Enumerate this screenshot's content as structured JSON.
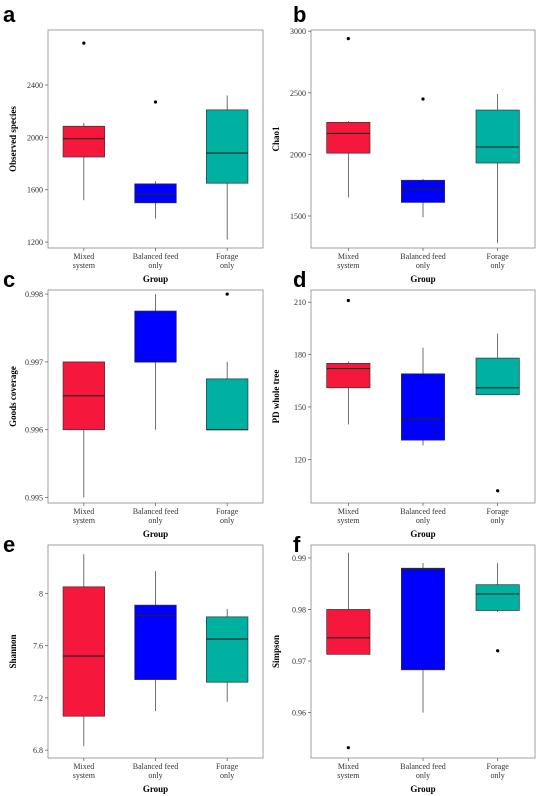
{
  "colors": {
    "Mixed system": "#f5183c",
    "Balanced feed only": "#0000ff",
    "Forage only": "#00b0a0"
  },
  "chart_data": [
    {
      "panel": "a",
      "type": "box",
      "xlabel": "Group",
      "ylabel": "Observed species",
      "categories": [
        "Mixed system",
        "Balanced feed only",
        "Forage only"
      ],
      "yticks": [
        1200,
        1600,
        2000,
        2400
      ],
      "ylim": [
        1155,
        2820
      ],
      "boxes": [
        {
          "whisker_low": 1520,
          "q1": 1850,
          "median": 1990,
          "q3": 2085,
          "whisker_high": 2110,
          "outliers": [
            2720
          ]
        },
        {
          "whisker_low": 1380,
          "q1": 1500,
          "median": 1565,
          "q3": 1645,
          "whisker_high": 1665,
          "outliers": [
            2270
          ]
        },
        {
          "whisker_low": 1220,
          "q1": 1650,
          "median": 1880,
          "q3": 2210,
          "whisker_high": 2320,
          "outliers": []
        }
      ]
    },
    {
      "panel": "b",
      "type": "box",
      "xlabel": "Group",
      "ylabel": "Chao1",
      "categories": [
        "Mixed system",
        "Balanced feed only",
        "Forage only"
      ],
      "yticks": [
        1500,
        2000,
        2500,
        3000
      ],
      "ylim": [
        1240,
        3010
      ],
      "boxes": [
        {
          "whisker_low": 1650,
          "q1": 2010,
          "median": 2170,
          "q3": 2260,
          "whisker_high": 2270,
          "outliers": [
            2940
          ]
        },
        {
          "whisker_low": 1490,
          "q1": 1610,
          "median": 1720,
          "q3": 1790,
          "whisker_high": 1800,
          "outliers": [
            2450
          ]
        },
        {
          "whisker_low": 1280,
          "q1": 1930,
          "median": 2060,
          "q3": 2360,
          "whisker_high": 2490,
          "outliers": []
        }
      ]
    },
    {
      "panel": "c",
      "type": "box",
      "xlabel": "Group",
      "ylabel": "Goods coverage",
      "categories": [
        "Mixed system",
        "Balanced feed only",
        "Forage only"
      ],
      "yticks": [
        0.995,
        0.996,
        0.997,
        0.998
      ],
      "ylim": [
        0.99492,
        0.99806
      ],
      "boxes": [
        {
          "whisker_low": 0.995,
          "q1": 0.996,
          "median": 0.9965,
          "q3": 0.997,
          "whisker_high": 0.997,
          "outliers": []
        },
        {
          "whisker_low": 0.996,
          "q1": 0.997,
          "median": 0.997,
          "q3": 0.99775,
          "whisker_high": 0.998,
          "outliers": []
        },
        {
          "whisker_low": 0.996,
          "q1": 0.996,
          "median": 0.996,
          "q3": 0.99675,
          "whisker_high": 0.997,
          "outliers": [
            0.998
          ]
        }
      ]
    },
    {
      "panel": "d",
      "type": "box",
      "xlabel": "Group",
      "ylabel": "PD whole tree",
      "categories": [
        "Mixed system",
        "Balanced feed only",
        "Forage only"
      ],
      "yticks": [
        120,
        150,
        180,
        210
      ],
      "ylim": [
        95,
        217
      ],
      "boxes": [
        {
          "whisker_low": 140,
          "q1": 161,
          "median": 172,
          "q3": 175,
          "whisker_high": 176,
          "outliers": [
            211
          ]
        },
        {
          "whisker_low": 128,
          "q1": 131,
          "median": 143,
          "q3": 169,
          "whisker_high": 184,
          "outliers": []
        },
        {
          "whisker_low": 157,
          "q1": 157,
          "median": 161,
          "q3": 178,
          "whisker_high": 192,
          "outliers": [
            102
          ]
        }
      ]
    },
    {
      "panel": "e",
      "type": "box",
      "xlabel": "Group",
      "ylabel": "Shannon",
      "categories": [
        "Mixed system",
        "Balanced feed only",
        "Forage only"
      ],
      "yticks": [
        6.8,
        7.2,
        7.6,
        8.0
      ],
      "ylim": [
        6.74,
        8.37
      ],
      "boxes": [
        {
          "whisker_low": 6.83,
          "q1": 7.06,
          "median": 7.52,
          "q3": 8.05,
          "whisker_high": 8.3,
          "outliers": []
        },
        {
          "whisker_low": 7.1,
          "q1": 7.34,
          "median": 7.83,
          "q3": 7.91,
          "whisker_high": 8.17,
          "outliers": []
        },
        {
          "whisker_low": 7.17,
          "q1": 7.32,
          "median": 7.65,
          "q3": 7.82,
          "whisker_high": 7.88,
          "outliers": []
        }
      ]
    },
    {
      "panel": "f",
      "type": "box",
      "xlabel": "Group",
      "ylabel": "Simpson",
      "categories": [
        "Mixed system",
        "Balanced feed only",
        "Forage only"
      ],
      "yticks": [
        0.96,
        0.97,
        0.98,
        0.99
      ],
      "ylim": [
        0.9512,
        0.9925
      ],
      "boxes": [
        {
          "whisker_low": 0.9713,
          "q1": 0.9713,
          "median": 0.9745,
          "q3": 0.98,
          "whisker_high": 0.991,
          "outliers": [
            0.9532
          ]
        },
        {
          "whisker_low": 0.96,
          "q1": 0.9683,
          "median": 0.9878,
          "q3": 0.988,
          "whisker_high": 0.989,
          "outliers": []
        },
        {
          "whisker_low": 0.9795,
          "q1": 0.9798,
          "median": 0.983,
          "q3": 0.9848,
          "whisker_high": 0.989,
          "outliers": [
            0.972
          ]
        }
      ]
    }
  ]
}
